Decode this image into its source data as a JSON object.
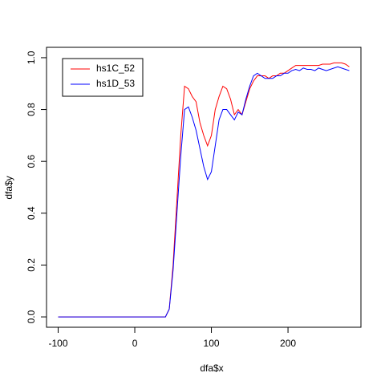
{
  "chart_data": {
    "type": "line",
    "x_label": "dfa$x",
    "y_label": "dfa$y",
    "x": [
      -100,
      40,
      45,
      50,
      55,
      60,
      65,
      70,
      75,
      80,
      85,
      90,
      95,
      100,
      105,
      110,
      115,
      120,
      125,
      130,
      135,
      140,
      145,
      150,
      155,
      160,
      165,
      170,
      175,
      180,
      185,
      190,
      195,
      200,
      205,
      210,
      215,
      220,
      225,
      230,
      235,
      240,
      245,
      250,
      255,
      260,
      265,
      270,
      275,
      280
    ],
    "series": [
      {
        "name": "hs1C_52",
        "color": "#ff0000",
        "values": [
          0,
          0,
          0.03,
          0.2,
          0.45,
          0.7,
          0.89,
          0.88,
          0.85,
          0.83,
          0.75,
          0.7,
          0.66,
          0.7,
          0.8,
          0.85,
          0.89,
          0.88,
          0.84,
          0.78,
          0.8,
          0.78,
          0.83,
          0.88,
          0.91,
          0.93,
          0.93,
          0.93,
          0.92,
          0.93,
          0.93,
          0.94,
          0.94,
          0.95,
          0.96,
          0.97,
          0.97,
          0.97,
          0.97,
          0.97,
          0.97,
          0.97,
          0.975,
          0.975,
          0.975,
          0.98,
          0.98,
          0.98,
          0.975,
          0.965
        ]
      },
      {
        "name": "hs1D_53",
        "color": "#0000ff",
        "values": [
          0,
          0,
          0.03,
          0.18,
          0.4,
          0.62,
          0.8,
          0.81,
          0.77,
          0.72,
          0.65,
          0.58,
          0.53,
          0.56,
          0.66,
          0.76,
          0.8,
          0.8,
          0.78,
          0.76,
          0.79,
          0.78,
          0.84,
          0.89,
          0.93,
          0.94,
          0.93,
          0.92,
          0.92,
          0.92,
          0.93,
          0.93,
          0.94,
          0.94,
          0.95,
          0.955,
          0.95,
          0.96,
          0.955,
          0.955,
          0.95,
          0.96,
          0.955,
          0.95,
          0.955,
          0.96,
          0.965,
          0.96,
          0.955,
          0.95
        ]
      }
    ],
    "xlim": [
      -115.2,
      295.2
    ],
    "ylim": [
      -0.04,
      1.04
    ],
    "xticks": [
      -100,
      0,
      100,
      200
    ],
    "yticks": [
      {
        "value": 0,
        "label": "0.0"
      },
      {
        "value": 0.2,
        "label": "0.2"
      },
      {
        "value": 0.4,
        "label": "0.4"
      },
      {
        "value": 0.6,
        "label": "0.6"
      },
      {
        "value": 0.8,
        "label": "0.8"
      },
      {
        "value": 1,
        "label": "1.0"
      }
    ],
    "legend": "top-left"
  }
}
